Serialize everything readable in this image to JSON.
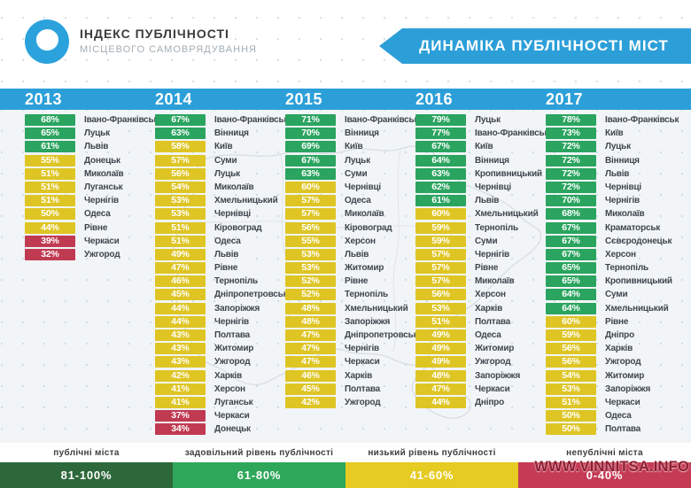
{
  "header": {
    "logo_title": "ІНДЕКС ПУБЛІЧНОСТІ",
    "logo_subtitle": "МІСЦЕВОГО САМОВРЯДУВАННЯ",
    "banner_title": "ДИНАМІКА ПУБЛІЧНОСТІ МІСТ"
  },
  "colors": {
    "accent_blue": "#2C9FD9",
    "badge_green": "#2AA45F",
    "badge_yellow": "#DEC524",
    "badge_red": "#C03A52"
  },
  "chart_data": {
    "type": "table",
    "title": "ДИНАМІКА ПУБЛІЧНОСТІ МІСТ",
    "value_unit": "%",
    "level_rules": {
      "green_min": 61,
      "yellow_min": 41,
      "red_max": 40
    },
    "columns": [
      {
        "year": "2013",
        "rows": [
          {
            "v": 68,
            "city": "Івано-Франківськ"
          },
          {
            "v": 65,
            "city": "Луцьк"
          },
          {
            "v": 61,
            "city": "Львів"
          },
          {
            "v": 55,
            "city": "Донецьк"
          },
          {
            "v": 51,
            "city": "Миколаїв"
          },
          {
            "v": 51,
            "city": "Луганськ"
          },
          {
            "v": 51,
            "city": "Чернігів"
          },
          {
            "v": 50,
            "city": "Одеса"
          },
          {
            "v": 44,
            "city": "Рівне"
          },
          {
            "v": 39,
            "city": "Черкаси"
          },
          {
            "v": 32,
            "city": "Ужгород"
          }
        ]
      },
      {
        "year": "2014",
        "rows": [
          {
            "v": 67,
            "city": "Івано-Франківськ"
          },
          {
            "v": 63,
            "city": "Вінниця"
          },
          {
            "v": 58,
            "city": "Київ"
          },
          {
            "v": 57,
            "city": "Суми"
          },
          {
            "v": 56,
            "city": "Луцьк"
          },
          {
            "v": 54,
            "city": "Миколаїв"
          },
          {
            "v": 53,
            "city": "Хмельницький"
          },
          {
            "v": 53,
            "city": "Чернівці"
          },
          {
            "v": 51,
            "city": "Кіровоград"
          },
          {
            "v": 51,
            "city": "Одеса"
          },
          {
            "v": 49,
            "city": "Львів"
          },
          {
            "v": 47,
            "city": "Рівне"
          },
          {
            "v": 46,
            "city": "Тернопіль"
          },
          {
            "v": 45,
            "city": "Дніпропетровськ"
          },
          {
            "v": 44,
            "city": "Запоріжжя"
          },
          {
            "v": 44,
            "city": "Чернігів"
          },
          {
            "v": 43,
            "city": "Полтава"
          },
          {
            "v": 43,
            "city": "Житомир"
          },
          {
            "v": 43,
            "city": "Ужгород"
          },
          {
            "v": 42,
            "city": "Харків"
          },
          {
            "v": 41,
            "city": "Херсон"
          },
          {
            "v": 41,
            "city": "Луганськ"
          },
          {
            "v": 37,
            "city": "Черкаси"
          },
          {
            "v": 34,
            "city": "Донецьк"
          }
        ]
      },
      {
        "year": "2015",
        "rows": [
          {
            "v": 71,
            "city": "Івано-Франківськ"
          },
          {
            "v": 70,
            "city": "Вінниця"
          },
          {
            "v": 69,
            "city": "Київ"
          },
          {
            "v": 67,
            "city": "Луцьк"
          },
          {
            "v": 63,
            "city": "Суми"
          },
          {
            "v": 60,
            "city": "Чернівці"
          },
          {
            "v": 57,
            "city": "Одеса"
          },
          {
            "v": 57,
            "city": "Миколаїв"
          },
          {
            "v": 56,
            "city": "Кіровоград"
          },
          {
            "v": 55,
            "city": "Херсон"
          },
          {
            "v": 53,
            "city": "Львів"
          },
          {
            "v": 53,
            "city": "Житомир"
          },
          {
            "v": 52,
            "city": "Рівне"
          },
          {
            "v": 52,
            "city": "Тернопіль"
          },
          {
            "v": 48,
            "city": "Хмельницький"
          },
          {
            "v": 48,
            "city": "Запоріжжя"
          },
          {
            "v": 47,
            "city": "Дніпропетровськ"
          },
          {
            "v": 47,
            "city": "Чернігів"
          },
          {
            "v": 47,
            "city": "Черкаси"
          },
          {
            "v": 46,
            "city": "Харків"
          },
          {
            "v": 45,
            "city": "Полтава"
          },
          {
            "v": 42,
            "city": "Ужгород"
          }
        ]
      },
      {
        "year": "2016",
        "rows": [
          {
            "v": 79,
            "city": "Луцьк"
          },
          {
            "v": 77,
            "city": "Івано-Франківськ"
          },
          {
            "v": 67,
            "city": "Київ"
          },
          {
            "v": 64,
            "city": "Вінниця"
          },
          {
            "v": 63,
            "city": "Кропивницький"
          },
          {
            "v": 62,
            "city": "Чернівці"
          },
          {
            "v": 61,
            "city": "Львів"
          },
          {
            "v": 60,
            "city": "Хмельницький"
          },
          {
            "v": 59,
            "city": "Тернопіль"
          },
          {
            "v": 59,
            "city": "Суми"
          },
          {
            "v": 57,
            "city": "Чернігів"
          },
          {
            "v": 57,
            "city": "Рівне"
          },
          {
            "v": 57,
            "city": "Миколаїв"
          },
          {
            "v": 56,
            "city": "Херсон"
          },
          {
            "v": 53,
            "city": "Харків"
          },
          {
            "v": 51,
            "city": "Полтава"
          },
          {
            "v": 49,
            "city": "Одеса"
          },
          {
            "v": 49,
            "city": "Житомир"
          },
          {
            "v": 49,
            "city": "Ужгород"
          },
          {
            "v": 48,
            "city": "Запоріжжя"
          },
          {
            "v": 47,
            "city": "Черкаси"
          },
          {
            "v": 44,
            "city": "Дніпро"
          }
        ]
      },
      {
        "year": "2017",
        "rows": [
          {
            "v": 78,
            "city": "Івано-Франківськ"
          },
          {
            "v": 73,
            "city": "Київ"
          },
          {
            "v": 72,
            "city": "Луцьк"
          },
          {
            "v": 72,
            "city": "Вінниця"
          },
          {
            "v": 72,
            "city": "Львів"
          },
          {
            "v": 72,
            "city": "Чернівці"
          },
          {
            "v": 70,
            "city": "Чернігів"
          },
          {
            "v": 68,
            "city": "Миколаїв"
          },
          {
            "v": 67,
            "city": "Краматорськ"
          },
          {
            "v": 67,
            "city": "Сєвєродонецьк"
          },
          {
            "v": 67,
            "city": "Херсон"
          },
          {
            "v": 65,
            "city": "Тернопіль"
          },
          {
            "v": 65,
            "city": "Кропивницький"
          },
          {
            "v": 64,
            "city": "Суми"
          },
          {
            "v": 64,
            "city": "Хмельницький"
          },
          {
            "v": 60,
            "city": "Рівне"
          },
          {
            "v": 59,
            "city": "Дніпро"
          },
          {
            "v": 56,
            "city": "Харків"
          },
          {
            "v": 56,
            "city": "Ужгород"
          },
          {
            "v": 54,
            "city": "Житомир"
          },
          {
            "v": 53,
            "city": "Запоріжжя"
          },
          {
            "v": 51,
            "city": "Черкаси"
          },
          {
            "v": 50,
            "city": "Одеса"
          },
          {
            "v": 50,
            "city": "Полтава"
          }
        ]
      }
    ]
  },
  "footer": {
    "legend": [
      {
        "label": "публічні міста",
        "range": "81-100%",
        "color": "#2D683B"
      },
      {
        "label": "задовільний рівень публічності",
        "range": "61-80%",
        "color": "#2FA75A"
      },
      {
        "label": "низький рівень публічності",
        "range": "41-60%",
        "color": "#E5CB22"
      },
      {
        "label": "непублічні міста",
        "range": "0-40%",
        "color": "#C53B55"
      }
    ]
  },
  "watermark": "WWW.VINNITSA.INFO"
}
